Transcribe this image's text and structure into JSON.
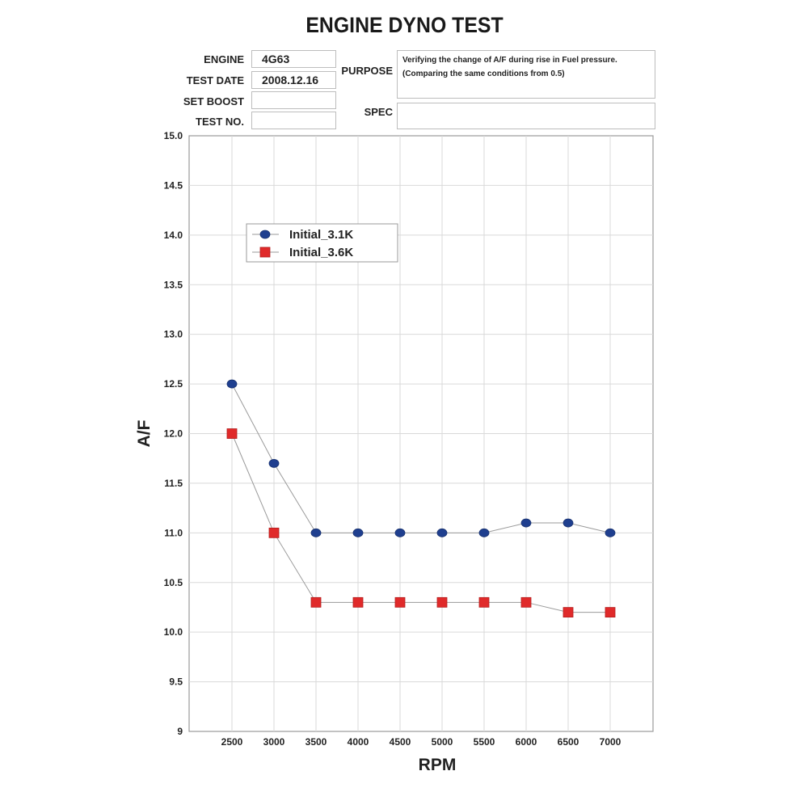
{
  "header": {
    "title": "ENGINE DYNO TEST",
    "fields": {
      "engine_label": "ENGINE",
      "engine_value": "4G63",
      "test_date_label": "TEST DATE",
      "test_date_value": "2008.12.16",
      "set_boost_label": "SET BOOST",
      "set_boost_value": "",
      "test_no_label": "TEST NO.",
      "test_no_value": "",
      "purpose_label": "PURPOSE",
      "purpose_value": "Verifying the change of A/F during rise in Fuel pressure. (Comparing the same conditions from 0.5)",
      "spec_label": "SPEC",
      "spec_value": ""
    }
  },
  "chart_data": {
    "type": "line",
    "title": "ENGINE DYNO TEST",
    "xlabel": "RPM",
    "ylabel": "A/F",
    "x": [
      2500,
      3000,
      3500,
      4000,
      4500,
      5000,
      5500,
      6000,
      6500,
      7000
    ],
    "xticks": [
      "2500",
      "3000",
      "3500",
      "4000",
      "4500",
      "5000",
      "5500",
      "6000",
      "6500",
      "7000"
    ],
    "ylim": [
      9,
      15
    ],
    "yticks": [
      "9",
      "9.5",
      "10.0",
      "10.5",
      "11.0",
      "11.5",
      "12.0",
      "12.5",
      "13.0",
      "13.5",
      "14.0",
      "14.5",
      "15.0"
    ],
    "grid": true,
    "legend": "top-left",
    "series": [
      {
        "name": "Initial_3.1K",
        "marker": "circle",
        "color": "#1f3f8f",
        "values": [
          12.5,
          11.7,
          11.0,
          11.0,
          11.0,
          11.0,
          11.0,
          11.1,
          11.1,
          11.0
        ]
      },
      {
        "name": "Initial_3.6K",
        "marker": "square",
        "color": "#e02a2a",
        "values": [
          12.0,
          11.0,
          10.3,
          10.3,
          10.3,
          10.3,
          10.3,
          10.3,
          10.2,
          10.2
        ]
      }
    ]
  }
}
